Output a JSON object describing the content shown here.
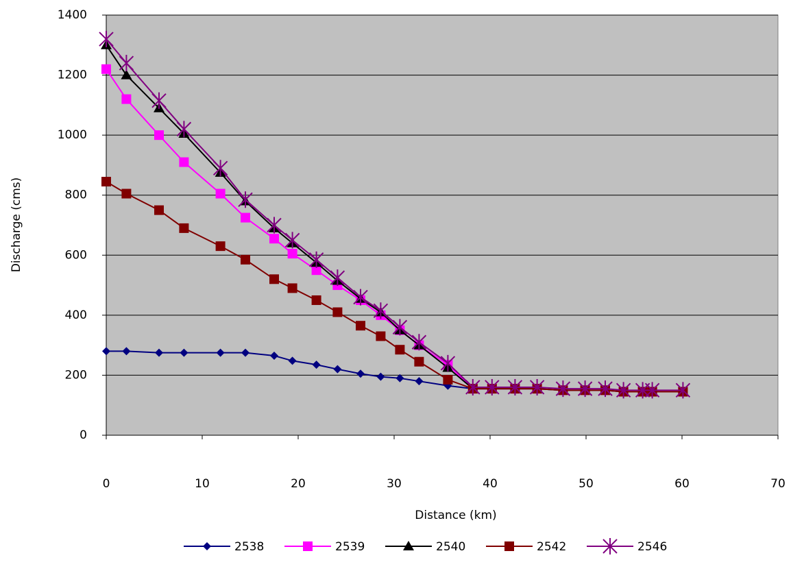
{
  "chart_data": {
    "type": "line",
    "x_label": "Distance (km)",
    "y_label": "Discharge (cms)",
    "x": [
      0,
      2.1,
      5.5,
      8.1,
      11.9,
      14.5,
      17.5,
      19.4,
      21.9,
      24.1,
      26.5,
      28.6,
      30.6,
      32.6,
      35.6,
      38.2,
      40.2,
      42.6,
      44.9,
      47.6,
      49.9,
      52,
      53.9,
      55.9,
      56.9,
      60.1
    ],
    "series": [
      {
        "name": "2538",
        "color": "#000080",
        "marker": "diamond",
        "values": [
          280,
          280,
          275,
          275,
          275,
          275,
          265,
          248,
          235,
          220,
          205,
          195,
          190,
          180,
          165,
          155,
          155,
          155,
          155,
          150,
          150,
          150,
          145,
          145,
          145,
          145
        ]
      },
      {
        "name": "2539",
        "color": "#ff00ff",
        "marker": "square",
        "values": [
          1220,
          1120,
          1000,
          910,
          805,
          725,
          655,
          605,
          550,
          500,
          450,
          400,
          350,
          300,
          235,
          155,
          155,
          155,
          155,
          150,
          150,
          150,
          145,
          145,
          145,
          145
        ]
      },
      {
        "name": "2540",
        "color": "#000000",
        "marker": "triangle",
        "values": [
          1300,
          1200,
          1090,
          1005,
          875,
          780,
          690,
          640,
          575,
          515,
          455,
          410,
          350,
          300,
          225,
          155,
          155,
          155,
          155,
          150,
          150,
          150,
          145,
          145,
          145,
          145
        ]
      },
      {
        "name": "2542",
        "color": "#800000",
        "marker": "square",
        "values": [
          845,
          805,
          750,
          690,
          630,
          585,
          520,
          490,
          450,
          410,
          365,
          330,
          285,
          245,
          185,
          155,
          155,
          155,
          155,
          150,
          150,
          150,
          145,
          145,
          145,
          145
        ]
      },
      {
        "name": "2546",
        "color": "#800080",
        "marker": "star",
        "values": [
          1320,
          1240,
          1115,
          1020,
          890,
          785,
          700,
          650,
          585,
          525,
          460,
          415,
          360,
          310,
          240,
          160,
          160,
          160,
          160,
          155,
          155,
          155,
          150,
          150,
          150,
          150
        ]
      }
    ],
    "xlim": [
      0,
      70
    ],
    "xticks": [
      0,
      10,
      20,
      30,
      40,
      50,
      60,
      70
    ],
    "ylim": [
      0,
      1400
    ],
    "yticks": [
      0,
      200,
      400,
      600,
      800,
      1000,
      1200,
      1400
    ],
    "grid": true,
    "plot_background": "#c0c0c0",
    "legend": "bottom"
  }
}
